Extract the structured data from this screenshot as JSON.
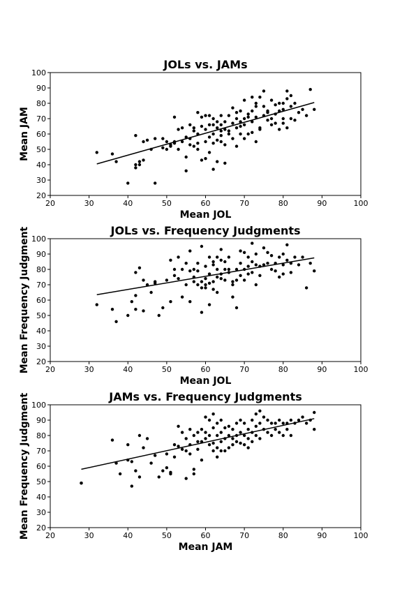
{
  "chart_data": [
    {
      "type": "scatter",
      "title": "JOLs vs. JAMs",
      "xlabel": "Mean JOL",
      "ylabel": "Mean JAM",
      "xlim": [
        20,
        100
      ],
      "ylim": [
        20,
        100
      ],
      "xticks": [
        20,
        30,
        40,
        50,
        60,
        70,
        80,
        90,
        100
      ],
      "yticks": [
        20,
        30,
        40,
        50,
        60,
        70,
        80,
        90,
        100
      ],
      "trendline": {
        "x": [
          32,
          88
        ],
        "y": [
          40.5,
          80.5
        ]
      },
      "x": [
        32,
        36,
        37,
        40,
        42,
        42,
        42,
        43,
        43,
        44,
        44,
        45,
        46,
        47,
        47,
        49,
        49,
        50,
        50,
        51,
        51,
        52,
        52,
        52,
        53,
        53,
        54,
        54,
        55,
        55,
        55,
        56,
        56,
        56,
        57,
        57,
        57,
        58,
        58,
        58,
        58,
        59,
        59,
        59,
        60,
        60,
        60,
        60,
        61,
        61,
        61,
        61,
        62,
        62,
        62,
        62,
        62,
        63,
        63,
        63,
        63,
        64,
        64,
        64,
        64,
        64,
        65,
        65,
        65,
        65,
        66,
        66,
        66,
        67,
        67,
        67,
        68,
        68,
        68,
        68,
        69,
        69,
        69,
        69,
        70,
        70,
        70,
        70,
        71,
        71,
        71,
        72,
        72,
        72,
        72,
        73,
        73,
        73,
        73,
        74,
        74,
        74,
        75,
        75,
        75,
        76,
        76,
        76,
        77,
        77,
        77,
        78,
        78,
        78,
        79,
        79,
        79,
        80,
        80,
        80,
        80,
        81,
        81,
        81,
        82,
        82,
        82,
        83,
        83,
        84,
        85,
        86,
        87,
        88
      ],
      "y": [
        48,
        47,
        42,
        28,
        38,
        40,
        59,
        42,
        40,
        55,
        43,
        56,
        50,
        57,
        28,
        57,
        51,
        55,
        50,
        52,
        53,
        71,
        55,
        54,
        63,
        50,
        64,
        55,
        36,
        58,
        45,
        66,
        57,
        53,
        64,
        62,
        52,
        74,
        60,
        54,
        50,
        71,
        65,
        43,
        55,
        63,
        72,
        44,
        66,
        58,
        72,
        48,
        66,
        54,
        60,
        70,
        37,
        64,
        68,
        56,
        42,
        72,
        66,
        59,
        55,
        62,
        63,
        68,
        53,
        41,
        60,
        72,
        62,
        57,
        77,
        67,
        64,
        52,
        70,
        74,
        75,
        68,
        60,
        65,
        70,
        57,
        82,
        66,
        71,
        73,
        60,
        61,
        84,
        75,
        68,
        78,
        55,
        71,
        80,
        63,
        64,
        84,
        78,
        72,
        88,
        75,
        74,
        69,
        82,
        70,
        66,
        79,
        73,
        67,
        80,
        75,
        63,
        80,
        76,
        70,
        67,
        88,
        83,
        64,
        78,
        70,
        85,
        80,
        69,
        74,
        76,
        72,
        89,
        76
      ]
    },
    {
      "type": "scatter",
      "title": "JOLs vs. Frequency Judgments",
      "xlabel": "Mean JOL",
      "ylabel": "Mean Frequency Judgment",
      "xlim": [
        20,
        100
      ],
      "ylim": [
        20,
        100
      ],
      "xticks": [
        20,
        30,
        40,
        50,
        60,
        70,
        80,
        90,
        100
      ],
      "yticks": [
        20,
        30,
        40,
        50,
        60,
        70,
        80,
        90,
        100
      ],
      "trendline": {
        "x": [
          32,
          88
        ],
        "y": [
          63.5,
          87.5
        ]
      },
      "x": [
        32,
        36,
        37,
        40,
        41,
        42,
        42,
        42,
        43,
        44,
        44,
        45,
        46,
        47,
        47,
        48,
        49,
        50,
        51,
        51,
        52,
        52,
        53,
        53,
        54,
        54,
        55,
        55,
        56,
        56,
        56,
        57,
        57,
        57,
        58,
        58,
        58,
        59,
        59,
        59,
        59,
        60,
        60,
        60,
        60,
        61,
        61,
        61,
        61,
        62,
        62,
        62,
        62,
        63,
        63,
        63,
        63,
        64,
        64,
        64,
        64,
        65,
        65,
        65,
        66,
        66,
        66,
        67,
        67,
        67,
        68,
        68,
        68,
        69,
        69,
        69,
        70,
        70,
        70,
        71,
        71,
        71,
        72,
        72,
        72,
        73,
        73,
        73,
        74,
        74,
        75,
        75,
        76,
        76,
        77,
        77,
        78,
        78,
        79,
        79,
        80,
        80,
        80,
        81,
        81,
        82,
        82,
        83,
        84,
        85,
        86,
        87,
        88
      ],
      "y": [
        57,
        54,
        46,
        50,
        59,
        63,
        54,
        78,
        81,
        73,
        53,
        70,
        65,
        71,
        72,
        50,
        55,
        73,
        59,
        86,
        80,
        76,
        74,
        88,
        62,
        80,
        84,
        70,
        92,
        79,
        59,
        80,
        75,
        72,
        84,
        79,
        70,
        72,
        68,
        52,
        95,
        82,
        74,
        70,
        68,
        57,
        88,
        77,
        71,
        85,
        83,
        72,
        67,
        88,
        80,
        75,
        65,
        93,
        86,
        77,
        74,
        85,
        80,
        73,
        88,
        80,
        78,
        72,
        70,
        62,
        80,
        73,
        55,
        92,
        84,
        76,
        91,
        80,
        73,
        88,
        82,
        77,
        97,
        85,
        78,
        90,
        83,
        70,
        82,
        76,
        94,
        83,
        91,
        84,
        89,
        80,
        84,
        79,
        88,
        75,
        90,
        83,
        77,
        96,
        86,
        84,
        78,
        88,
        83,
        88,
        68,
        84,
        79
      ]
    },
    {
      "type": "scatter",
      "title": "JAMs vs. Frequency Judgments",
      "xlabel": "Mean JAM",
      "ylabel": "Mean Frequency Judgment",
      "xlim": [
        20,
        100
      ],
      "ylim": [
        20,
        100
      ],
      "xticks": [
        20,
        30,
        40,
        50,
        60,
        70,
        80,
        90,
        100
      ],
      "yticks": [
        20,
        30,
        40,
        50,
        60,
        70,
        80,
        90,
        100
      ],
      "trendline": {
        "x": [
          28,
          88
        ],
        "y": [
          58,
          91
        ]
      },
      "x": [
        28,
        28,
        36,
        37,
        38,
        40,
        40,
        41,
        41,
        42,
        43,
        43,
        44,
        45,
        46,
        47,
        48,
        49,
        50,
        50,
        51,
        51,
        52,
        52,
        53,
        53,
        54,
        54,
        55,
        55,
        55,
        56,
        56,
        56,
        57,
        57,
        57,
        58,
        58,
        58,
        59,
        59,
        59,
        60,
        60,
        60,
        61,
        61,
        61,
        62,
        62,
        62,
        62,
        63,
        63,
        63,
        63,
        64,
        64,
        64,
        64,
        65,
        65,
        65,
        66,
        66,
        66,
        67,
        67,
        67,
        68,
        68,
        68,
        69,
        69,
        69,
        70,
        70,
        70,
        71,
        71,
        71,
        72,
        72,
        72,
        73,
        73,
        73,
        74,
        74,
        74,
        75,
        75,
        76,
        76,
        77,
        77,
        78,
        78,
        79,
        79,
        80,
        80,
        81,
        81,
        82,
        82,
        83,
        84,
        85,
        86,
        87,
        88,
        88
      ],
      "y": [
        49,
        49,
        77,
        62,
        55,
        74,
        64,
        63,
        47,
        57,
        80,
        53,
        72,
        78,
        62,
        67,
        53,
        57,
        68,
        59,
        56,
        55,
        74,
        66,
        86,
        73,
        82,
        71,
        78,
        52,
        70,
        84,
        74,
        68,
        80,
        58,
        55,
        82,
        76,
        71,
        84,
        76,
        64,
        92,
        82,
        78,
        90,
        80,
        74,
        94,
        85,
        75,
        70,
        88,
        80,
        72,
        66,
        90,
        82,
        76,
        70,
        85,
        78,
        70,
        86,
        80,
        72,
        84,
        78,
        74,
        88,
        80,
        76,
        90,
        82,
        75,
        88,
        80,
        74,
        84,
        78,
        72,
        90,
        82,
        76,
        94,
        86,
        80,
        96,
        88,
        78,
        92,
        84,
        90,
        82,
        88,
        80,
        88,
        84,
        90,
        82,
        88,
        80,
        88,
        84,
        90,
        80,
        88,
        90,
        92,
        88,
        90,
        95,
        84
      ]
    }
  ]
}
